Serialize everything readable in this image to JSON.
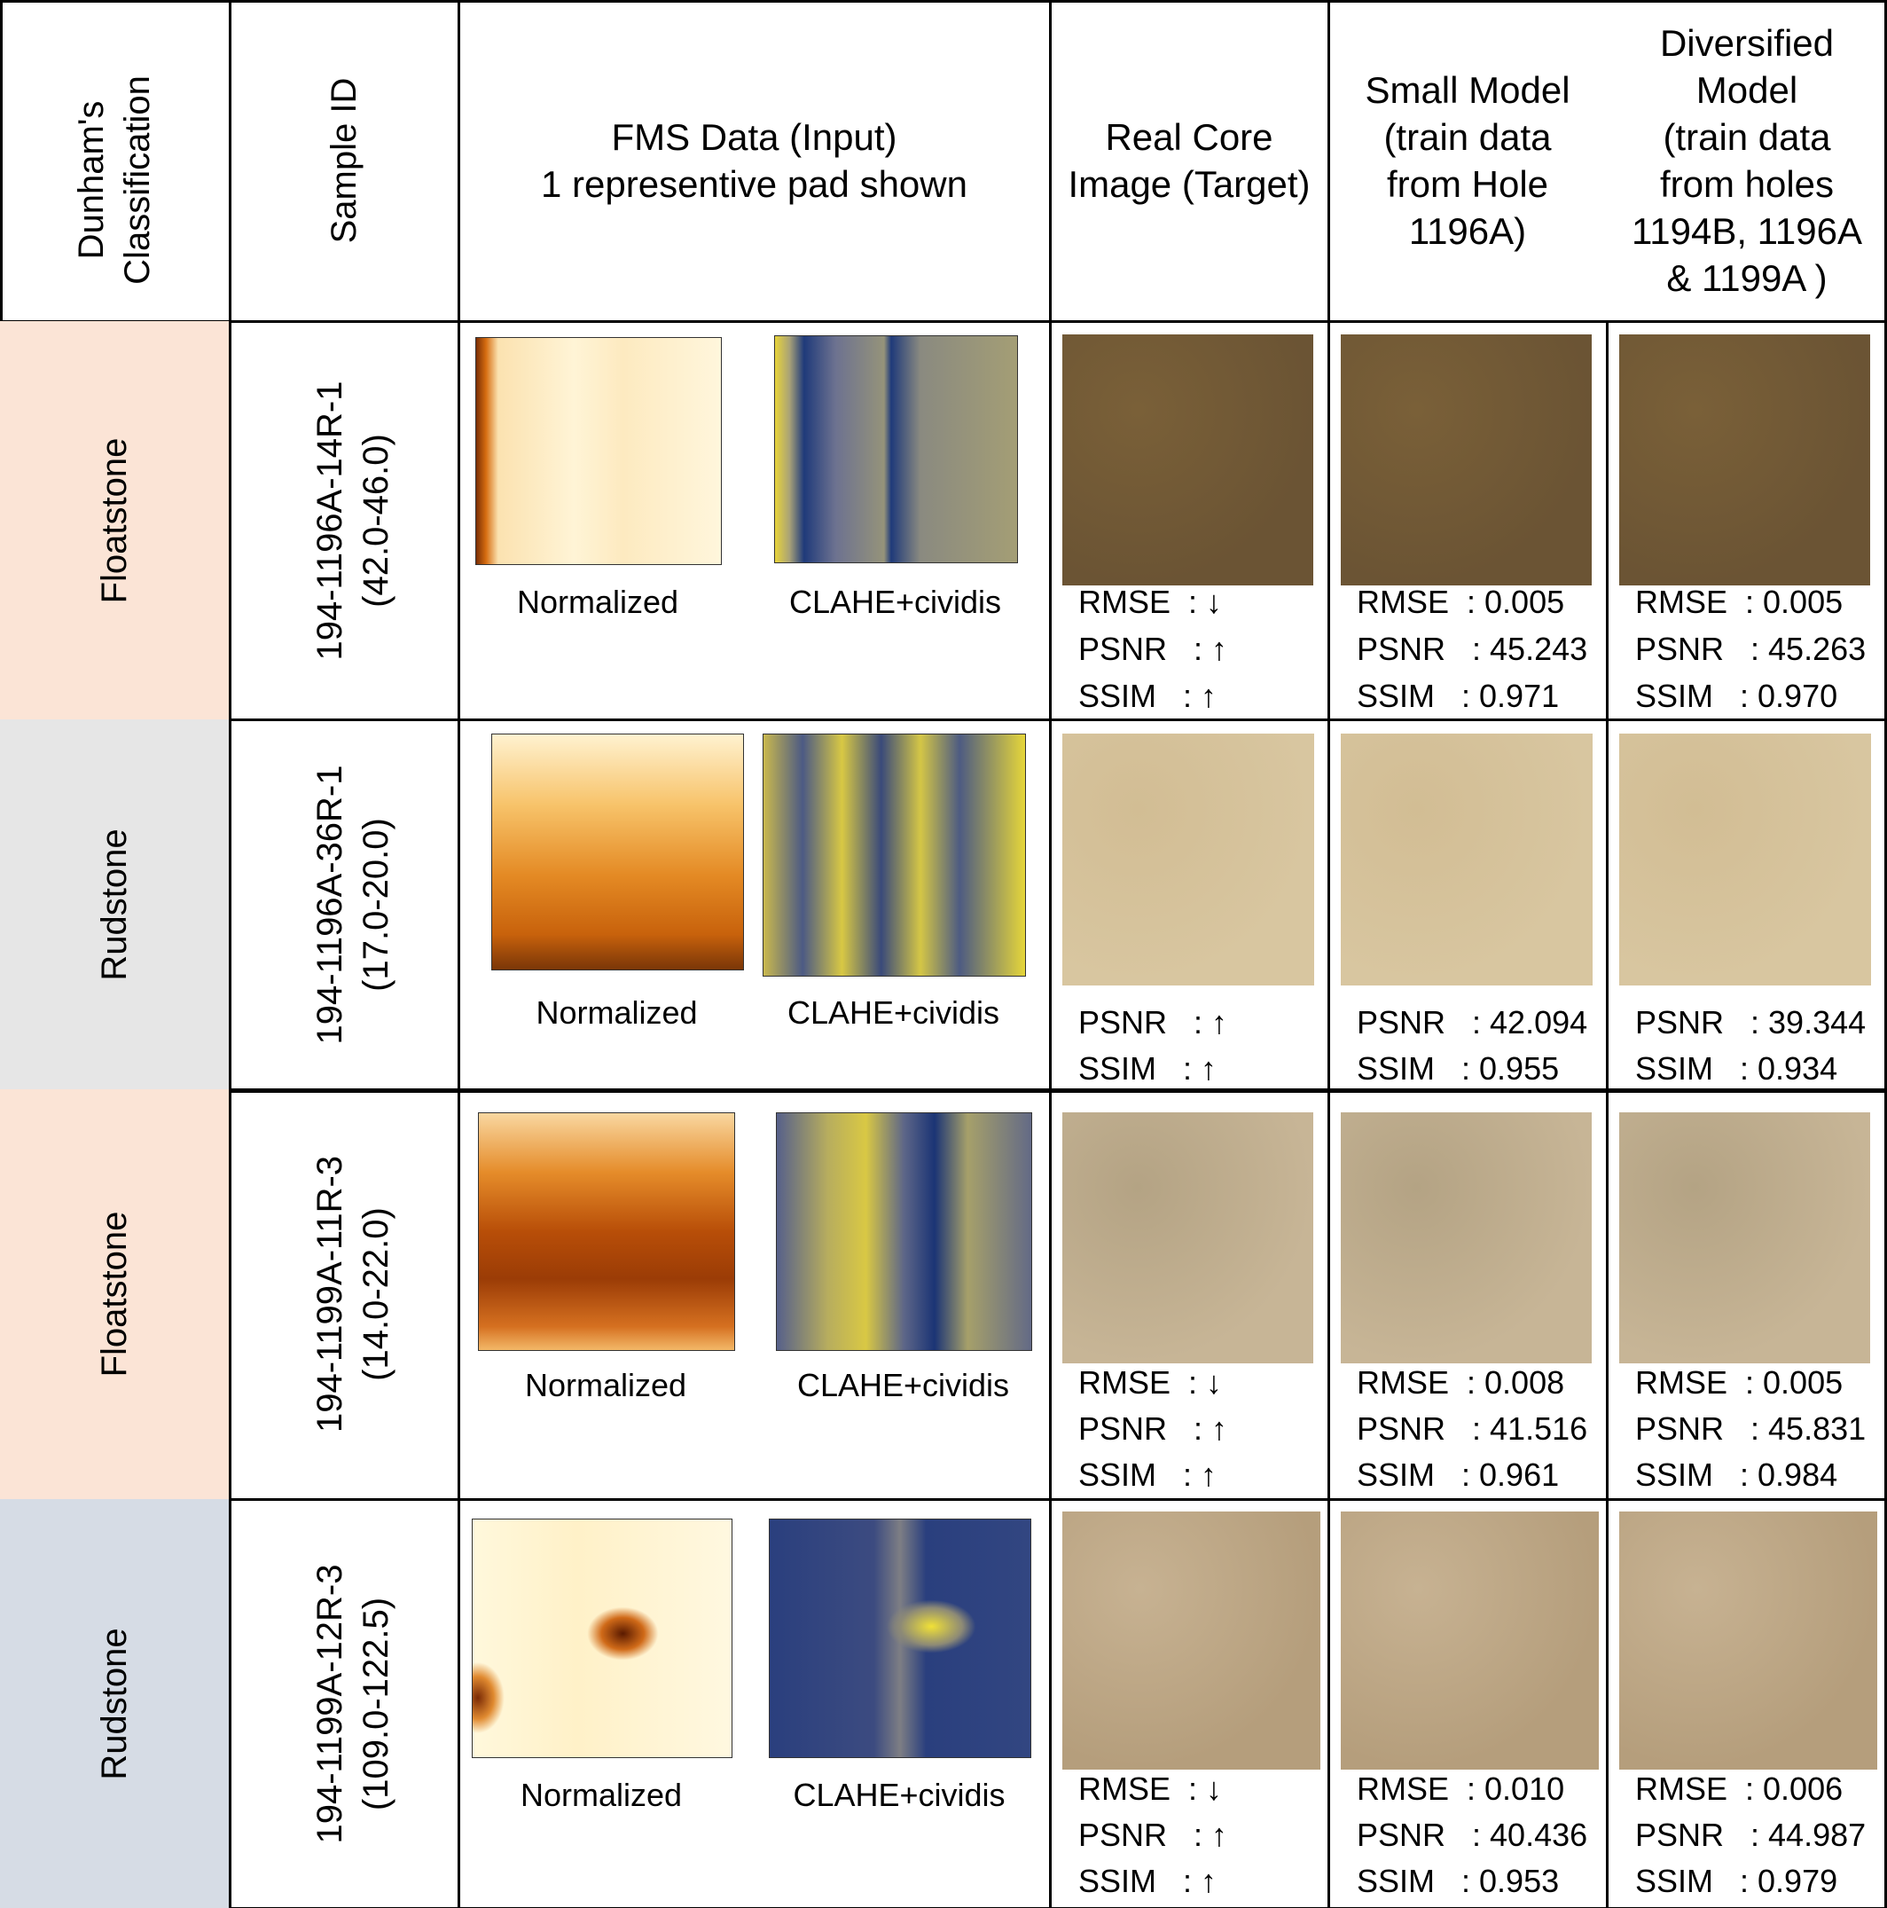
{
  "header": {
    "classification": "Dunham's\nClassification",
    "sample_id": "Sample ID",
    "fms": "FMS Data (Input)\n1 representive pad shown",
    "real_core": "Real Core\nImage (Target)",
    "small_model": "Small Model\n(train data\nfrom Hole\n1196A)",
    "diversified_model": "Diversified\nModel\n(train data\nfrom  holes\n1194B, 1196A\n& 1199A )"
  },
  "captions": {
    "normalized": "Normalized",
    "clahe": "CLAHE+cividis"
  },
  "target_metrics": {
    "rmse": "RMSE  : ↓",
    "psnr": "PSNR   : ↑",
    "ssim": "SSIM   : ↑"
  },
  "colors": {
    "floatstone_bg": "#fbe4d6",
    "rudstone_gray_bg": "#e6e6e6",
    "rudstone_blue_bg": "#d6dce5"
  },
  "rows": [
    {
      "classification": "Floatstone",
      "sample_id": "194-1196A-14R-1\n(42.0-46.0)",
      "small": {
        "rmse": "RMSE  : 0.005",
        "psnr": "PSNR   : 45.243",
        "ssim": "SSIM   : 0.971"
      },
      "diversified": {
        "rmse": "RMSE  : 0.005",
        "psnr": "PSNR   : 45.263",
        "ssim": "SSIM   : 0.970"
      }
    },
    {
      "classification": "Rudstone",
      "sample_id": "194-1196A-36R-1\n(17.0-20.0)",
      "small": {
        "psnr": "PSNR   : 42.094",
        "ssim": "SSIM   : 0.955"
      },
      "diversified": {
        "psnr": "PSNR   : 39.344",
        "ssim": "SSIM   : 0.934"
      }
    },
    {
      "classification": "Floatstone",
      "sample_id": "194-1199A-11R-3\n(14.0-22.0)",
      "small": {
        "rmse": "RMSE  : 0.008",
        "psnr": "PSNR   : 41.516",
        "ssim": "SSIM   : 0.961"
      },
      "diversified": {
        "rmse": "RMSE  : 0.005",
        "psnr": "PSNR   : 45.831",
        "ssim": "SSIM   : 0.984"
      }
    },
    {
      "classification": "Rudstone",
      "sample_id": "194-1199A-12R-3\n(109.0-122.5)",
      "small": {
        "rmse": "RMSE  : 0.010",
        "psnr": "PSNR   : 40.436",
        "ssim": "SSIM   : 0.953"
      },
      "diversified": {
        "rmse": "RMSE  : 0.006",
        "psnr": "PSNR   : 44.987",
        "ssim": "SSIM   : 0.979"
      }
    }
  ]
}
